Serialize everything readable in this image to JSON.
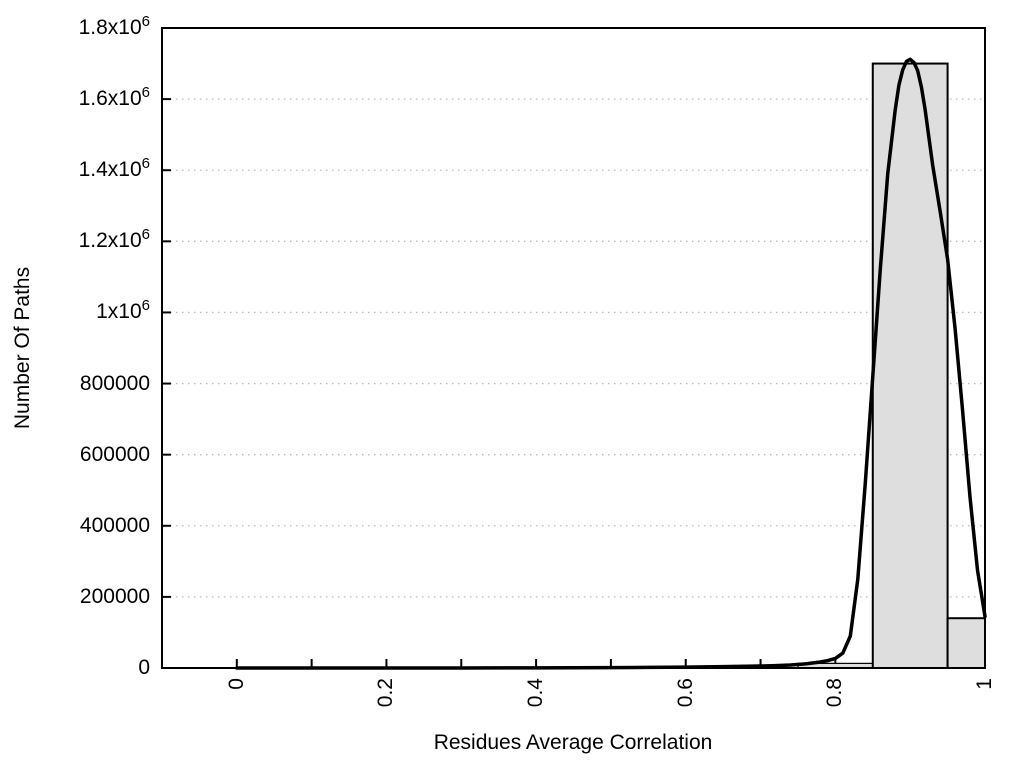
{
  "figure": {
    "background": "#ffffff",
    "foreground": "#000000"
  },
  "chart_data": {
    "type": "bar",
    "subtype": "histogram-with-fit-curve",
    "title": "",
    "xlabel": "Residues Average Correlation",
    "ylabel": "Number Of Paths",
    "xlim": [
      -0.1,
      1.0
    ],
    "ylim": [
      0,
      1800000
    ],
    "grid": {
      "horizontal": true,
      "vertical": false,
      "style": "dotted",
      "color": "#bbbbbb"
    },
    "x_ticks": [
      {
        "v": 0.0,
        "label": "0"
      },
      {
        "v": 0.1,
        "label": ""
      },
      {
        "v": 0.2,
        "label": "0.2"
      },
      {
        "v": 0.3,
        "label": ""
      },
      {
        "v": 0.4,
        "label": "0.4"
      },
      {
        "v": 0.5,
        "label": ""
      },
      {
        "v": 0.6,
        "label": "0.6"
      },
      {
        "v": 0.7,
        "label": ""
      },
      {
        "v": 0.8,
        "label": "0.8"
      },
      {
        "v": 0.9,
        "label": ""
      },
      {
        "v": 1.0,
        "label": "1"
      }
    ],
    "y_ticks": [
      {
        "v": 0,
        "label": "0"
      },
      {
        "v": 200000,
        "label": "200000"
      },
      {
        "v": 400000,
        "label": "400000"
      },
      {
        "v": 600000,
        "label": "600000"
      },
      {
        "v": 800000,
        "label": "800000"
      },
      {
        "v": 1000000,
        "label": "1x10^6"
      },
      {
        "v": 1200000,
        "label": "1.2x10^6"
      },
      {
        "v": 1400000,
        "label": "1.4x10^6"
      },
      {
        "v": 1600000,
        "label": "1.6x10^6"
      },
      {
        "v": 1800000,
        "label": "1.8x10^6"
      }
    ],
    "bars": [
      {
        "x0": 0.75,
        "x1": 0.85,
        "count": 13000,
        "border_width": 1.2
      },
      {
        "x0": 0.85,
        "x1": 0.95,
        "count": 1700000,
        "border_width": 2
      },
      {
        "x0": 0.95,
        "x1": 1.0,
        "count": 140000,
        "border_width": 2
      }
    ],
    "bar_fill": "#dedede",
    "bar_border": "#000000",
    "curve": {
      "name": "fit-curve",
      "color": "#000000",
      "width": 3.5,
      "points": [
        [
          0.0,
          0
        ],
        [
          0.05,
          0
        ],
        [
          0.1,
          0
        ],
        [
          0.15,
          0
        ],
        [
          0.2,
          0
        ],
        [
          0.25,
          0
        ],
        [
          0.3,
          100
        ],
        [
          0.35,
          200
        ],
        [
          0.4,
          400
        ],
        [
          0.45,
          700
        ],
        [
          0.5,
          1100
        ],
        [
          0.55,
          1700
        ],
        [
          0.6,
          2600
        ],
        [
          0.65,
          3800
        ],
        [
          0.68,
          4800
        ],
        [
          0.7,
          5600
        ],
        [
          0.72,
          6800
        ],
        [
          0.74,
          8500
        ],
        [
          0.76,
          11500
        ],
        [
          0.78,
          17000
        ],
        [
          0.79,
          21000
        ],
        [
          0.8,
          27000
        ],
        [
          0.81,
          42000
        ],
        [
          0.82,
          90000
        ],
        [
          0.83,
          250000
        ],
        [
          0.84,
          520000
        ],
        [
          0.85,
          820000
        ],
        [
          0.86,
          1120000
        ],
        [
          0.87,
          1390000
        ],
        [
          0.88,
          1570000
        ],
        [
          0.885,
          1640000
        ],
        [
          0.89,
          1682000
        ],
        [
          0.895,
          1706000
        ],
        [
          0.9,
          1712000
        ],
        [
          0.905,
          1703000
        ],
        [
          0.91,
          1680000
        ],
        [
          0.915,
          1634000
        ],
        [
          0.92,
          1570000
        ],
        [
          0.93,
          1415000
        ],
        [
          0.94,
          1285000
        ],
        [
          0.95,
          1150000
        ],
        [
          0.96,
          955000
        ],
        [
          0.97,
          725000
        ],
        [
          0.98,
          480000
        ],
        [
          0.99,
          275000
        ],
        [
          1.0,
          145000
        ]
      ]
    }
  }
}
